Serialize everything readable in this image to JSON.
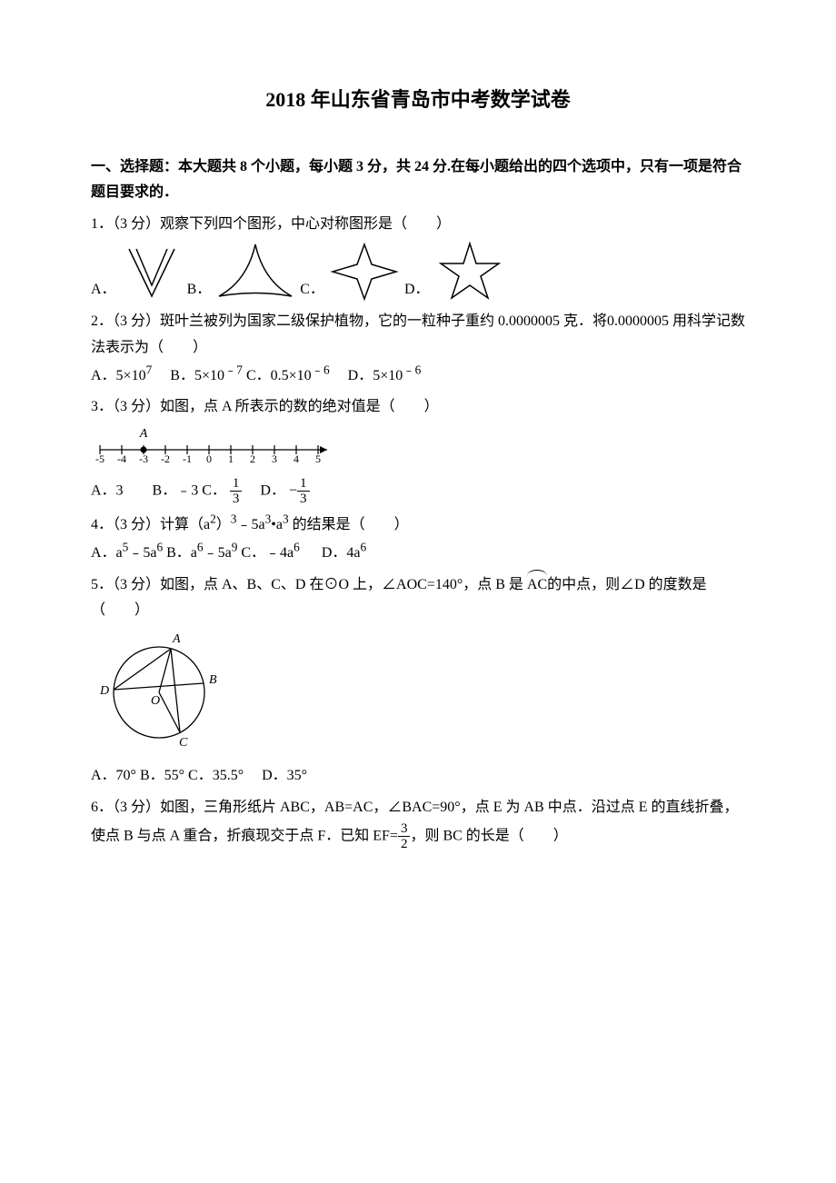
{
  "title": "2018 年山东省青岛市中考数学试卷",
  "section1_head": "一、选择题：本大题共 8 个小题，每小题 3 分，共 24 分.在每小题给出的四个选项中，只有一项是符合题目要求的．",
  "q1": {
    "stem": "1．（3 分）观察下列四个图形，中心对称图形是（　　）",
    "labels": {
      "A": "A．",
      "B": "B．",
      "C": "C．",
      "D": "D．"
    },
    "stroke": "#000000",
    "fill": "none"
  },
  "q2": {
    "stem": "2．（3 分）斑叶兰被列为国家二级保护植物，它的一粒种子重约 0.0000005 克．将0.0000005 用科学记数法表示为（　　）",
    "opts": {
      "A_pre": "A．5×10",
      "A_sup": "7",
      "B_pre": "　B．5×10",
      "B_sup": "﹣7",
      "C_pre": " C．0.5×10",
      "C_sup": "﹣6",
      "D_pre": "　D．5×10",
      "D_sup": "﹣6"
    }
  },
  "q3": {
    "stem": "3．（3 分）如图，点 A 所表示的数的绝对值是（　　）",
    "opts": {
      "A": "A．3　　B．﹣3  C．",
      "C_num": "1",
      "C_den": "3",
      "D_pre": "　D．",
      "D_neg": "−",
      "D_num": "1",
      "D_den": "3"
    },
    "axis": {
      "labels": [
        "-5",
        "-4",
        "-3",
        "-2",
        "-1",
        "0",
        "1",
        "2",
        "3",
        "4",
        "5"
      ],
      "A_label": "A",
      "A_x_index": 2,
      "stroke": "#000000"
    }
  },
  "q4": {
    "stem_pre": "4．（3 分）计算（a",
    "stem_sup1": "2",
    "stem_mid1": "）",
    "stem_sup2": "3",
    "stem_mid2": "﹣5a",
    "stem_sup3": "3",
    "stem_mid3": "•a",
    "stem_sup4": "3",
    "stem_end": " 的结果是（　　）",
    "opts": {
      "A_pre": "A．a",
      "A_s1": "5",
      "A_mid": "﹣5a",
      "A_s2": "6",
      "B_pre": "  B．a",
      "B_s1": "6",
      "B_mid": "﹣5a",
      "B_s2": "9",
      "C_pre": "  C．﹣4a",
      "C_s": "6",
      "D_pre": "　 D．4a",
      "D_s": "6"
    }
  },
  "q5": {
    "stem_pre": "5．（3 分）如图，点 A、B、C、D 在⊙O 上，∠AOC=140°，点 B 是",
    "arc_label": "AC",
    "stem_post": "的中点，则∠D 的度数是（　　）",
    "opts": "A．70°  B．55°  C．35.5°　 D．35°",
    "circle": {
      "stroke": "#000000",
      "labels": {
        "A": "A",
        "B": "B",
        "C": "C",
        "D": "D",
        "O": "O"
      }
    }
  },
  "q6": {
    "stem_pre": "6．（3 分）如图，三角形纸片 ABC，AB=AC，∠BAC=90°，点 E 为 AB 中点．沿过点 E 的直线折叠，使点 B 与点 A 重合，折痕现交于点 F．已知 EF=",
    "frac_num": "3",
    "frac_den": "2",
    "stem_post": "，则 BC 的长是（　　）"
  },
  "colors": {
    "text": "#000000",
    "bg": "#ffffff"
  }
}
